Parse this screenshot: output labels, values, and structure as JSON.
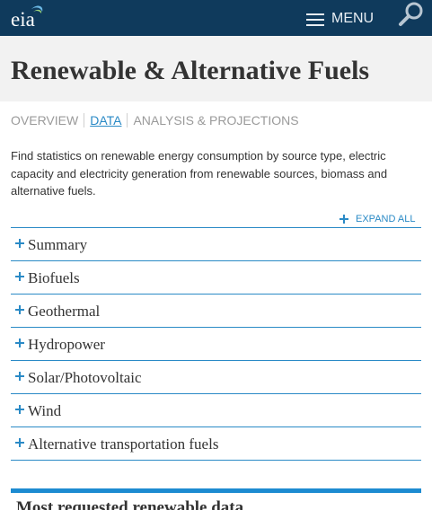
{
  "header": {
    "logo_text": "eia",
    "menu_label": "MENU"
  },
  "page": {
    "title": "Renewable & Alternative Fuels"
  },
  "subnav": {
    "items": [
      {
        "label": "OVERVIEW",
        "active": false
      },
      {
        "label": "DATA",
        "active": true
      },
      {
        "label": "ANALYSIS & PROJECTIONS",
        "active": false
      }
    ]
  },
  "intro": {
    "text": "Find statistics on renewable energy consumption by source type, electric capacity and electricity generation from renewable sources, biomass and alternative fuels."
  },
  "accordion": {
    "expand_all_label": "EXPAND ALL",
    "items": [
      {
        "label": "Summary"
      },
      {
        "label": "Biofuels"
      },
      {
        "label": "Geothermal"
      },
      {
        "label": "Hydropower"
      },
      {
        "label": "Solar/Photovoltaic"
      },
      {
        "label": "Wind"
      },
      {
        "label": "Alternative transportation fuels"
      }
    ]
  },
  "most_requested": {
    "title": "Most requested renewable data"
  },
  "colors": {
    "header_bg": "#0f3a5c",
    "accent": "#2a8ac6",
    "title_band_bg": "#f2f2f2"
  },
  "icons": {
    "menu": "hamburger-icon",
    "search": "magnifier-icon",
    "expand": "plus-icon"
  }
}
